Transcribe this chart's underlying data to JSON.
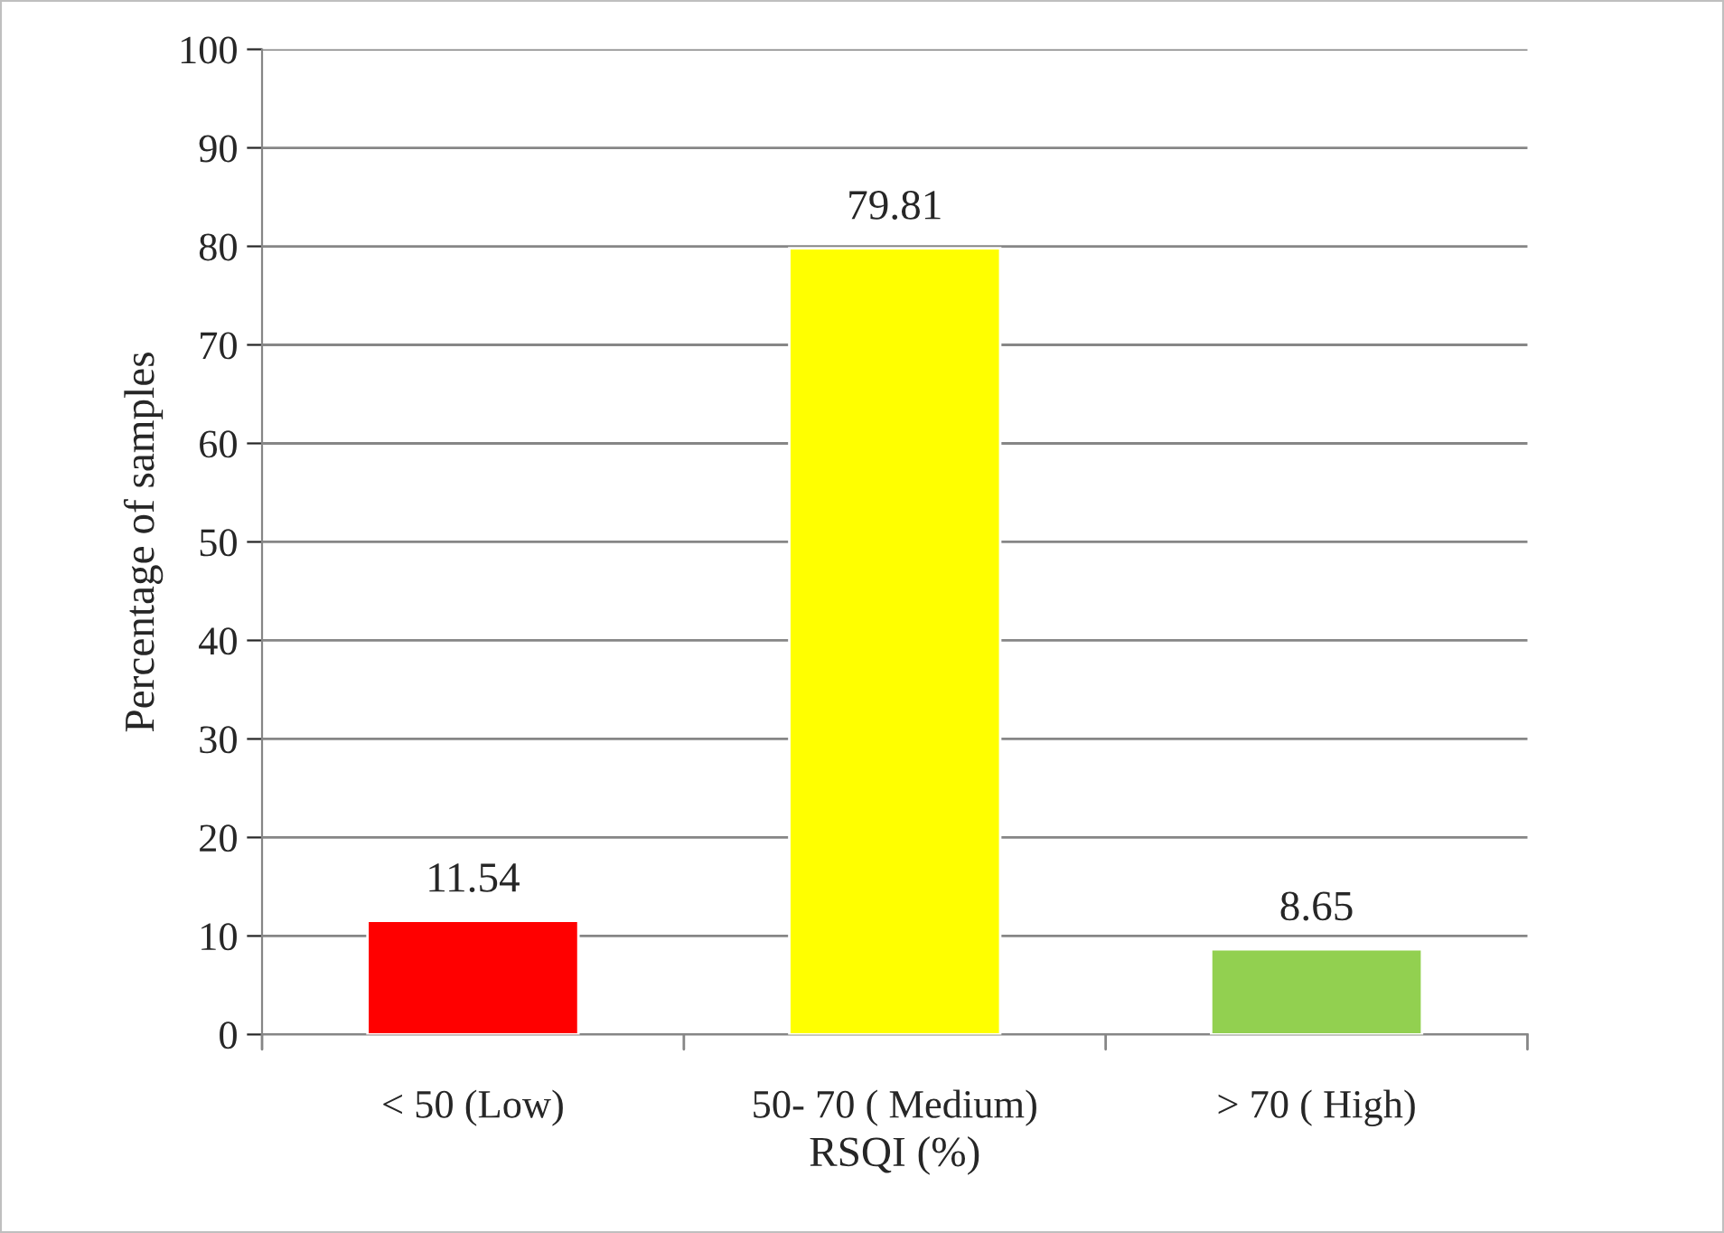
{
  "chart_data": {
    "type": "bar",
    "xlabel": "RSQI (%)",
    "ylabel": "Percentage of samples",
    "categories": [
      "< 50 (Low)",
      "50- 70 ( Medium)",
      "> 70 ( High)"
    ],
    "values": [
      11.54,
      79.81,
      8.65
    ],
    "colors": [
      "#ff0000",
      "#ffff00",
      "#92d050"
    ],
    "ylim": [
      0,
      100
    ],
    "yticks": [
      0,
      10,
      20,
      30,
      40,
      50,
      60,
      70,
      80,
      90,
      100
    ],
    "grid": "y",
    "data_labels": true
  }
}
